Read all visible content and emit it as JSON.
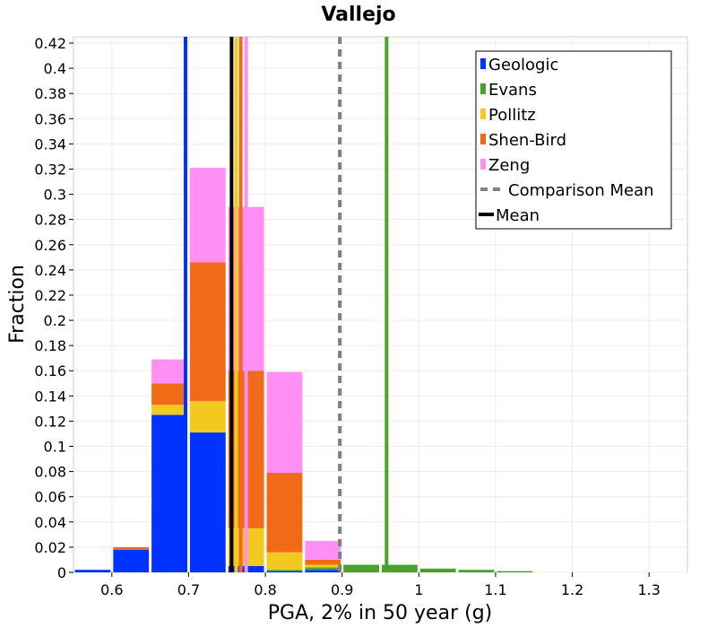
{
  "chart_data": {
    "type": "bar",
    "stacked": true,
    "title": "Vallejo",
    "xlabel": "PGA, 2% in 50 year (g)",
    "ylabel": "Fraction",
    "xlim": [
      0.55,
      1.35
    ],
    "ylim": [
      0,
      0.425
    ],
    "bin_width": 0.05,
    "grid": true,
    "legend_placement": "top-right",
    "x_ticks": [
      0.6,
      0.7,
      0.8,
      0.9,
      1,
      1.1,
      1.2,
      1.3
    ],
    "x_tick_labels": [
      "0.6",
      "0.7",
      "0.8",
      "0.9",
      "1",
      "1.1",
      "1.2",
      "1.3"
    ],
    "y_ticks": [
      0,
      0.02,
      0.04,
      0.06,
      0.08,
      0.1,
      0.12,
      0.14,
      0.16,
      0.18,
      0.2,
      0.22,
      0.24,
      0.26,
      0.28,
      0.3,
      0.32,
      0.34,
      0.36,
      0.38,
      0.4,
      0.42
    ],
    "y_tick_labels": [
      "0",
      "0.02",
      "0.04",
      "0.06",
      "0.08",
      "0.1",
      "0.12",
      "0.14",
      "0.16",
      "0.18",
      "0.2",
      "0.22",
      "0.24",
      "0.26",
      "0.28",
      "0.3",
      "0.32",
      "0.34",
      "0.36",
      "0.38",
      "0.4",
      "0.42"
    ],
    "bins": [
      0.575,
      0.625,
      0.675,
      0.725,
      0.775,
      0.825,
      0.875,
      0.925,
      0.975,
      1.025,
      1.075,
      1.125
    ],
    "series": [
      {
        "name": "Geologic",
        "color": "#0033ff",
        "values": [
          0.002,
          0.018,
          0.125,
          0.111,
          0.005,
          0.001,
          0.002,
          0,
          0,
          0,
          0,
          0
        ]
      },
      {
        "name": "Evans",
        "color": "#4aa12c",
        "values": [
          0,
          0,
          0,
          0,
          0,
          0.001,
          0.002,
          0.006,
          0.006,
          0.003,
          0.002,
          0.001
        ]
      },
      {
        "name": "Pollitz",
        "color": "#f2c91f",
        "values": [
          0,
          0,
          0.008,
          0.025,
          0.03,
          0.014,
          0.002,
          0,
          0,
          0,
          0,
          0
        ]
      },
      {
        "name": "Shen-Bird",
        "color": "#f06a17",
        "values": [
          0,
          0.002,
          0.017,
          0.11,
          0.125,
          0.063,
          0.004,
          0,
          0,
          0,
          0,
          0
        ]
      },
      {
        "name": "Zeng",
        "color": "#ff8ff2",
        "values": [
          0,
          0,
          0.019,
          0.075,
          0.13,
          0.08,
          0.015,
          0,
          0,
          0,
          0,
          0
        ]
      }
    ],
    "mean_lines": [
      {
        "series": "Geologic",
        "x": 0.696,
        "color": "#0033ff"
      },
      {
        "series": "Evans",
        "x": 0.958,
        "color": "#4aa12c"
      },
      {
        "series": "Pollitz",
        "x": 0.762,
        "color": "#f2c91f"
      },
      {
        "series": "Shen-Bird",
        "x": 0.768,
        "color": "#f06a17"
      },
      {
        "series": "Zeng",
        "x": 0.775,
        "color": "#ff8ff2"
      }
    ],
    "comparison_mean": {
      "label": "Comparison Mean",
      "x": 0.897,
      "color": "#808080"
    },
    "mean": {
      "label": "Mean",
      "x": 0.756,
      "color": "#000000"
    },
    "legend": [
      "Geologic",
      "Evans",
      "Pollitz",
      "Shen-Bird",
      "Zeng",
      "Comparison Mean",
      "Mean"
    ]
  }
}
